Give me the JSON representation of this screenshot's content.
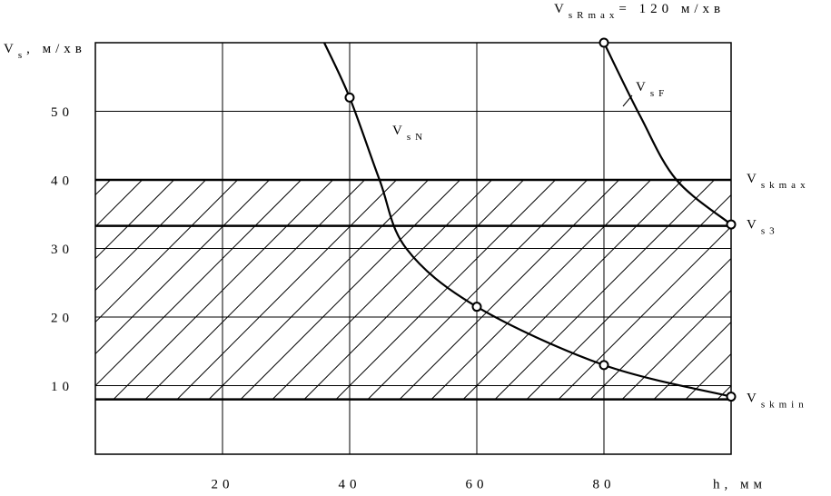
{
  "chart_data": {
    "type": "line",
    "y_label": {
      "base": "V",
      "sub": "s",
      "suffix": ", м/хв"
    },
    "x_label": "h, мм",
    "xlim": [
      0,
      100
    ],
    "ylim": [
      0,
      60
    ],
    "xticks": [
      20,
      40,
      60,
      80
    ],
    "yticks": [
      10,
      20,
      30,
      40,
      50
    ],
    "grid": true,
    "color": "#000000",
    "top_note": {
      "base": "V",
      "sub": "sRmax",
      "suffix": "= 120 м/хв"
    },
    "levels": [
      {
        "value": 40,
        "label": {
          "base": "V",
          "sub": "skmax"
        }
      },
      {
        "value": 33.3,
        "label": {
          "base": "V",
          "sub": "s3"
        }
      },
      {
        "value": 8,
        "label": {
          "base": "V",
          "sub": "skmin"
        }
      }
    ],
    "series": [
      {
        "name": {
          "base": "V",
          "sub": "sN"
        },
        "x": [
          36,
          40,
          44.7,
          48.9,
          60,
          80,
          100
        ],
        "values": [
          60,
          52,
          40,
          30,
          21.5,
          13,
          8.4
        ],
        "markers": [
          false,
          true,
          false,
          false,
          true,
          true,
          true
        ]
      },
      {
        "name": {
          "base": "V",
          "sub": "sF"
        },
        "x": [
          80,
          85.7,
          91.4,
          100
        ],
        "values": [
          60,
          49.3,
          40,
          33.5
        ],
        "markers": [
          true,
          false,
          false,
          true
        ]
      }
    ]
  }
}
